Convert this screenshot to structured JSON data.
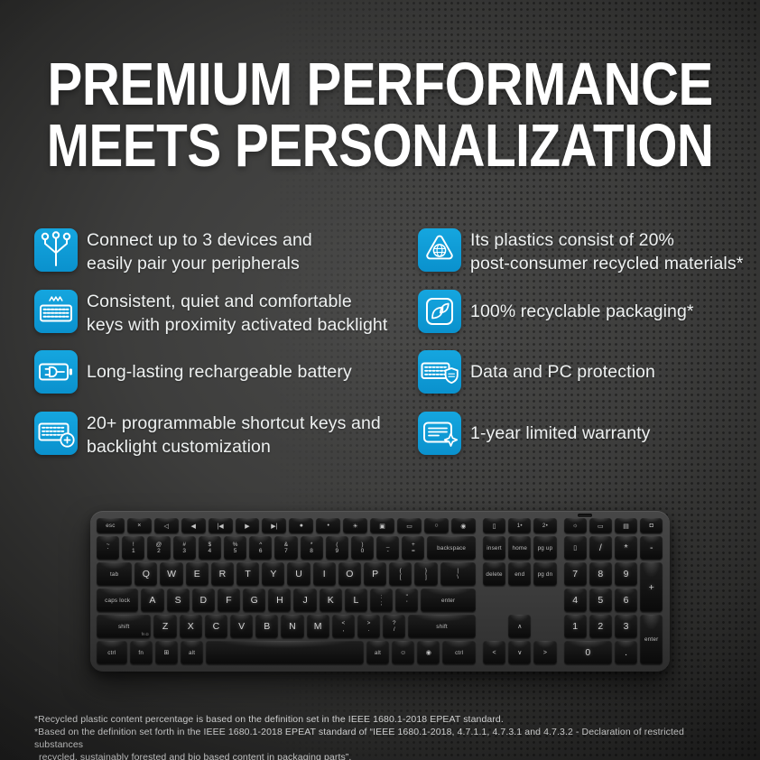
{
  "title": {
    "line1": "PREMIUM PERFORMANCE",
    "line2": "MEETS PERSONALIZATION"
  },
  "colors": {
    "accent_blue": "#0d9ad6",
    "background_dark": "#1a1a1a",
    "background_mid": "#3d3d3c",
    "text_light": "#eef1f1"
  },
  "features": {
    "left": [
      {
        "icon": "pair-devices-icon",
        "lines": [
          "Connect up to 3 devices and",
          "easily pair your peripherals"
        ]
      },
      {
        "icon": "backlit-keyboard-icon",
        "lines": [
          "Consistent, quiet and comfortable",
          "keys with proximity activated backlight"
        ]
      },
      {
        "icon": "rechargeable-battery-icon",
        "lines": [
          "Long-lasting rechargeable battery"
        ]
      },
      {
        "icon": "shortcut-keys-icon",
        "lines": [
          "20+ programmable shortcut keys and",
          "backlight customization"
        ]
      }
    ],
    "right": [
      {
        "icon": "recycled-plastics-icon",
        "lines": [
          "Its plastics consist of 20%",
          "post-consumer recycled materials*"
        ]
      },
      {
        "icon": "recyclable-packaging-icon",
        "lines": [
          "100% recyclable packaging*"
        ]
      },
      {
        "icon": "data-protection-icon",
        "lines": [
          "Data and PC protection"
        ]
      },
      {
        "icon": "limited-warranty-icon",
        "lines": [
          "1-year limited warranty"
        ]
      }
    ]
  },
  "footnotes": [
    "*Recycled plastic content percentage is based on the definition set in the IEEE 1680.1-2018 EPEAT standard.",
    "*Based on the definition set forth in the IEEE 1680.1-2018 EPEAT standard of “IEEE 1680.1-2018, 4.7.1.1, 4.7.3.1 and 4.7.3.2 - Declaration of restricted substances",
    "recycled, sustainably forested and bio based content in packaging parts”."
  ],
  "keyboard": {
    "main": [
      {
        "defw": 1.0615,
        "keys": [
          {
            "l": "esc",
            "w": 1.2,
            "cls": "txt"
          },
          {
            "l": "×",
            "cls": "ic"
          },
          {
            "l": "◁",
            "cls": "ic"
          },
          {
            "l": "◀",
            "cls": "ic"
          },
          {
            "l": "|◀",
            "cls": "ic"
          },
          {
            "l": "▶",
            "cls": "ic"
          },
          {
            "l": "▶|",
            "cls": "ic"
          },
          {
            "l": "●",
            "cls": "ic"
          },
          {
            "l": "•",
            "cls": "ic"
          },
          {
            "l": "☀",
            "cls": "ic"
          },
          {
            "l": "▣",
            "cls": "ic"
          },
          {
            "l": "▭",
            "cls": "ic"
          },
          {
            "l": "○",
            "cls": "ic"
          },
          {
            "l": "◉",
            "cls": "ic"
          }
        ]
      },
      {
        "keys": [
          {
            "t": "~",
            "l": "`"
          },
          {
            "t": "!",
            "l": "1"
          },
          {
            "t": "@",
            "l": "2"
          },
          {
            "t": "#",
            "l": "3"
          },
          {
            "t": "$",
            "l": "4"
          },
          {
            "t": "%",
            "l": "5"
          },
          {
            "t": "^",
            "l": "6"
          },
          {
            "t": "&",
            "l": "7"
          },
          {
            "t": "*",
            "l": "8"
          },
          {
            "t": "(",
            "l": "9"
          },
          {
            "t": ")",
            "l": "0"
          },
          {
            "t": "_",
            "l": "-"
          },
          {
            "t": "+",
            "l": "="
          },
          {
            "l": "backspace",
            "w": 2,
            "cls": "txt"
          }
        ]
      },
      {
        "keys": [
          {
            "l": "tab",
            "w": 1.5,
            "cls": "txt"
          },
          {
            "l": "Q",
            "cls": "lt"
          },
          {
            "l": "W",
            "cls": "lt"
          },
          {
            "l": "E",
            "cls": "lt"
          },
          {
            "l": "R",
            "cls": "lt"
          },
          {
            "l": "T",
            "cls": "lt"
          },
          {
            "l": "Y",
            "cls": "lt"
          },
          {
            "l": "U",
            "cls": "lt"
          },
          {
            "l": "I",
            "cls": "lt"
          },
          {
            "l": "O",
            "cls": "lt"
          },
          {
            "l": "P",
            "cls": "lt"
          },
          {
            "t": "{",
            "l": "["
          },
          {
            "t": "}",
            "l": "]"
          },
          {
            "t": "|",
            "l": "\\",
            "w": 1.5
          }
        ]
      },
      {
        "keys": [
          {
            "l": "caps lock",
            "w": 1.75,
            "cls": "txt"
          },
          {
            "l": "A",
            "cls": "lt"
          },
          {
            "l": "S",
            "cls": "lt"
          },
          {
            "l": "D",
            "cls": "lt"
          },
          {
            "l": "F",
            "cls": "lt"
          },
          {
            "l": "G",
            "cls": "lt"
          },
          {
            "l": "H",
            "cls": "lt"
          },
          {
            "l": "J",
            "cls": "lt"
          },
          {
            "l": "K",
            "cls": "lt"
          },
          {
            "l": "L",
            "cls": "lt"
          },
          {
            "t": ":",
            "l": ";"
          },
          {
            "t": "\"",
            "l": "'"
          },
          {
            "l": "enter",
            "w": 2.25,
            "cls": "txt"
          }
        ]
      },
      {
        "keys": [
          {
            "l": "shift",
            "w": 2.25,
            "cls": "txt",
            "sub": "fn ◘"
          },
          {
            "l": "Z",
            "cls": "lt"
          },
          {
            "l": "X",
            "cls": "lt"
          },
          {
            "l": "C",
            "cls": "lt"
          },
          {
            "l": "V",
            "cls": "lt"
          },
          {
            "l": "B",
            "cls": "lt"
          },
          {
            "l": "N",
            "cls": "lt"
          },
          {
            "l": "M",
            "cls": "lt"
          },
          {
            "t": "<",
            "l": ","
          },
          {
            "t": ">",
            "l": "."
          },
          {
            "t": "?",
            "l": "/"
          },
          {
            "l": "shift",
            "w": 2.75,
            "cls": "txt"
          }
        ]
      },
      {
        "keys": [
          {
            "l": "ctrl",
            "w": 1.3,
            "cls": "txt"
          },
          {
            "l": "fn",
            "cls": "txt"
          },
          {
            "l": "⊞",
            "cls": "ic"
          },
          {
            "l": "alt",
            "cls": "txt"
          },
          {
            "l": "",
            "w": 6.3,
            "cls": "space"
          },
          {
            "l": "alt",
            "cls": "txt"
          },
          {
            "l": "☺",
            "cls": "ic"
          },
          {
            "l": "◉",
            "cls": "ic"
          },
          {
            "l": "ctrl",
            "w": 1.4,
            "cls": "txt"
          }
        ]
      }
    ],
    "nav": [
      {
        "r": 1,
        "c": 1,
        "l": "▯",
        "cls": "ic"
      },
      {
        "r": 1,
        "c": 2,
        "l": "1•",
        "cls": "txt"
      },
      {
        "r": 1,
        "c": 3,
        "l": "2•",
        "cls": "txt"
      },
      {
        "r": 2,
        "c": 1,
        "l": "insert",
        "cls": "txt"
      },
      {
        "r": 2,
        "c": 2,
        "l": "home",
        "cls": "txt"
      },
      {
        "r": 2,
        "c": 3,
        "l": "pg up",
        "cls": "txt"
      },
      {
        "r": 3,
        "c": 1,
        "l": "delete",
        "cls": "txt"
      },
      {
        "r": 3,
        "c": 2,
        "l": "end",
        "cls": "txt"
      },
      {
        "r": 3,
        "c": 3,
        "l": "pg dn",
        "cls": "txt"
      },
      {
        "r": 5,
        "c": 2,
        "l": "∧",
        "cls": "ic"
      },
      {
        "r": 6,
        "c": 1,
        "l": "<",
        "cls": "ic"
      },
      {
        "r": 6,
        "c": 2,
        "l": "∨",
        "cls": "ic"
      },
      {
        "r": 6,
        "c": 3,
        "l": ">",
        "cls": "ic"
      }
    ],
    "num": [
      {
        "r": 1,
        "c": 1,
        "l": "☼",
        "cls": "ic"
      },
      {
        "r": 1,
        "c": 2,
        "l": "▭",
        "cls": "ic"
      },
      {
        "r": 1,
        "c": 3,
        "l": "▤",
        "cls": "ic"
      },
      {
        "r": 1,
        "c": 4,
        "l": "◘",
        "cls": "ic"
      },
      {
        "r": 2,
        "c": 1,
        "l": "▯",
        "cls": "ic"
      },
      {
        "r": 2,
        "c": 2,
        "l": "/",
        "cls": "lt"
      },
      {
        "r": 2,
        "c": 3,
        "l": "*",
        "cls": "lt"
      },
      {
        "r": 2,
        "c": 4,
        "l": "-",
        "cls": "lt"
      },
      {
        "r": 3,
        "c": 1,
        "l": "7",
        "cls": "lt"
      },
      {
        "r": 3,
        "c": 2,
        "l": "8",
        "cls": "lt"
      },
      {
        "r": 3,
        "c": 3,
        "l": "9",
        "cls": "lt"
      },
      {
        "r": 3,
        "c": 4,
        "rs": 2,
        "l": "+",
        "cls": "lt"
      },
      {
        "r": 4,
        "c": 1,
        "l": "4",
        "cls": "lt"
      },
      {
        "r": 4,
        "c": 2,
        "l": "5",
        "cls": "lt"
      },
      {
        "r": 4,
        "c": 3,
        "l": "6",
        "cls": "lt"
      },
      {
        "r": 5,
        "c": 1,
        "l": "1",
        "cls": "lt"
      },
      {
        "r": 5,
        "c": 2,
        "l": "2",
        "cls": "lt"
      },
      {
        "r": 5,
        "c": 3,
        "l": "3",
        "cls": "lt"
      },
      {
        "r": 5,
        "c": 4,
        "rs": 2,
        "l": "enter",
        "cls": "txt"
      },
      {
        "r": 6,
        "c": 1,
        "cs": 2,
        "l": "0",
        "cls": "lt"
      },
      {
        "r": 6,
        "c": 3,
        "l": ".",
        "cls": "lt"
      }
    ]
  }
}
